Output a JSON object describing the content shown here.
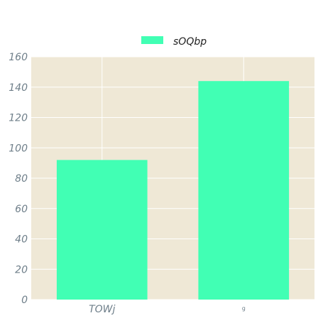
{
  "chart_data": {
    "type": "bar",
    "categories": [
      "TOWj",
      "g"
    ],
    "series": [
      {
        "name": "sOQbp",
        "values": [
          92,
          144
        ]
      }
    ],
    "ylim": [
      0,
      160
    ],
    "yticks": [
      0,
      20,
      40,
      60,
      80,
      100,
      120,
      140,
      160
    ],
    "grid": true,
    "legend_position": "top-center"
  },
  "colors": {
    "plot_background": "#efe8d6",
    "bar": "#41ffb4",
    "grid": "#ffffff",
    "tick_text": "#6f7f8a"
  }
}
